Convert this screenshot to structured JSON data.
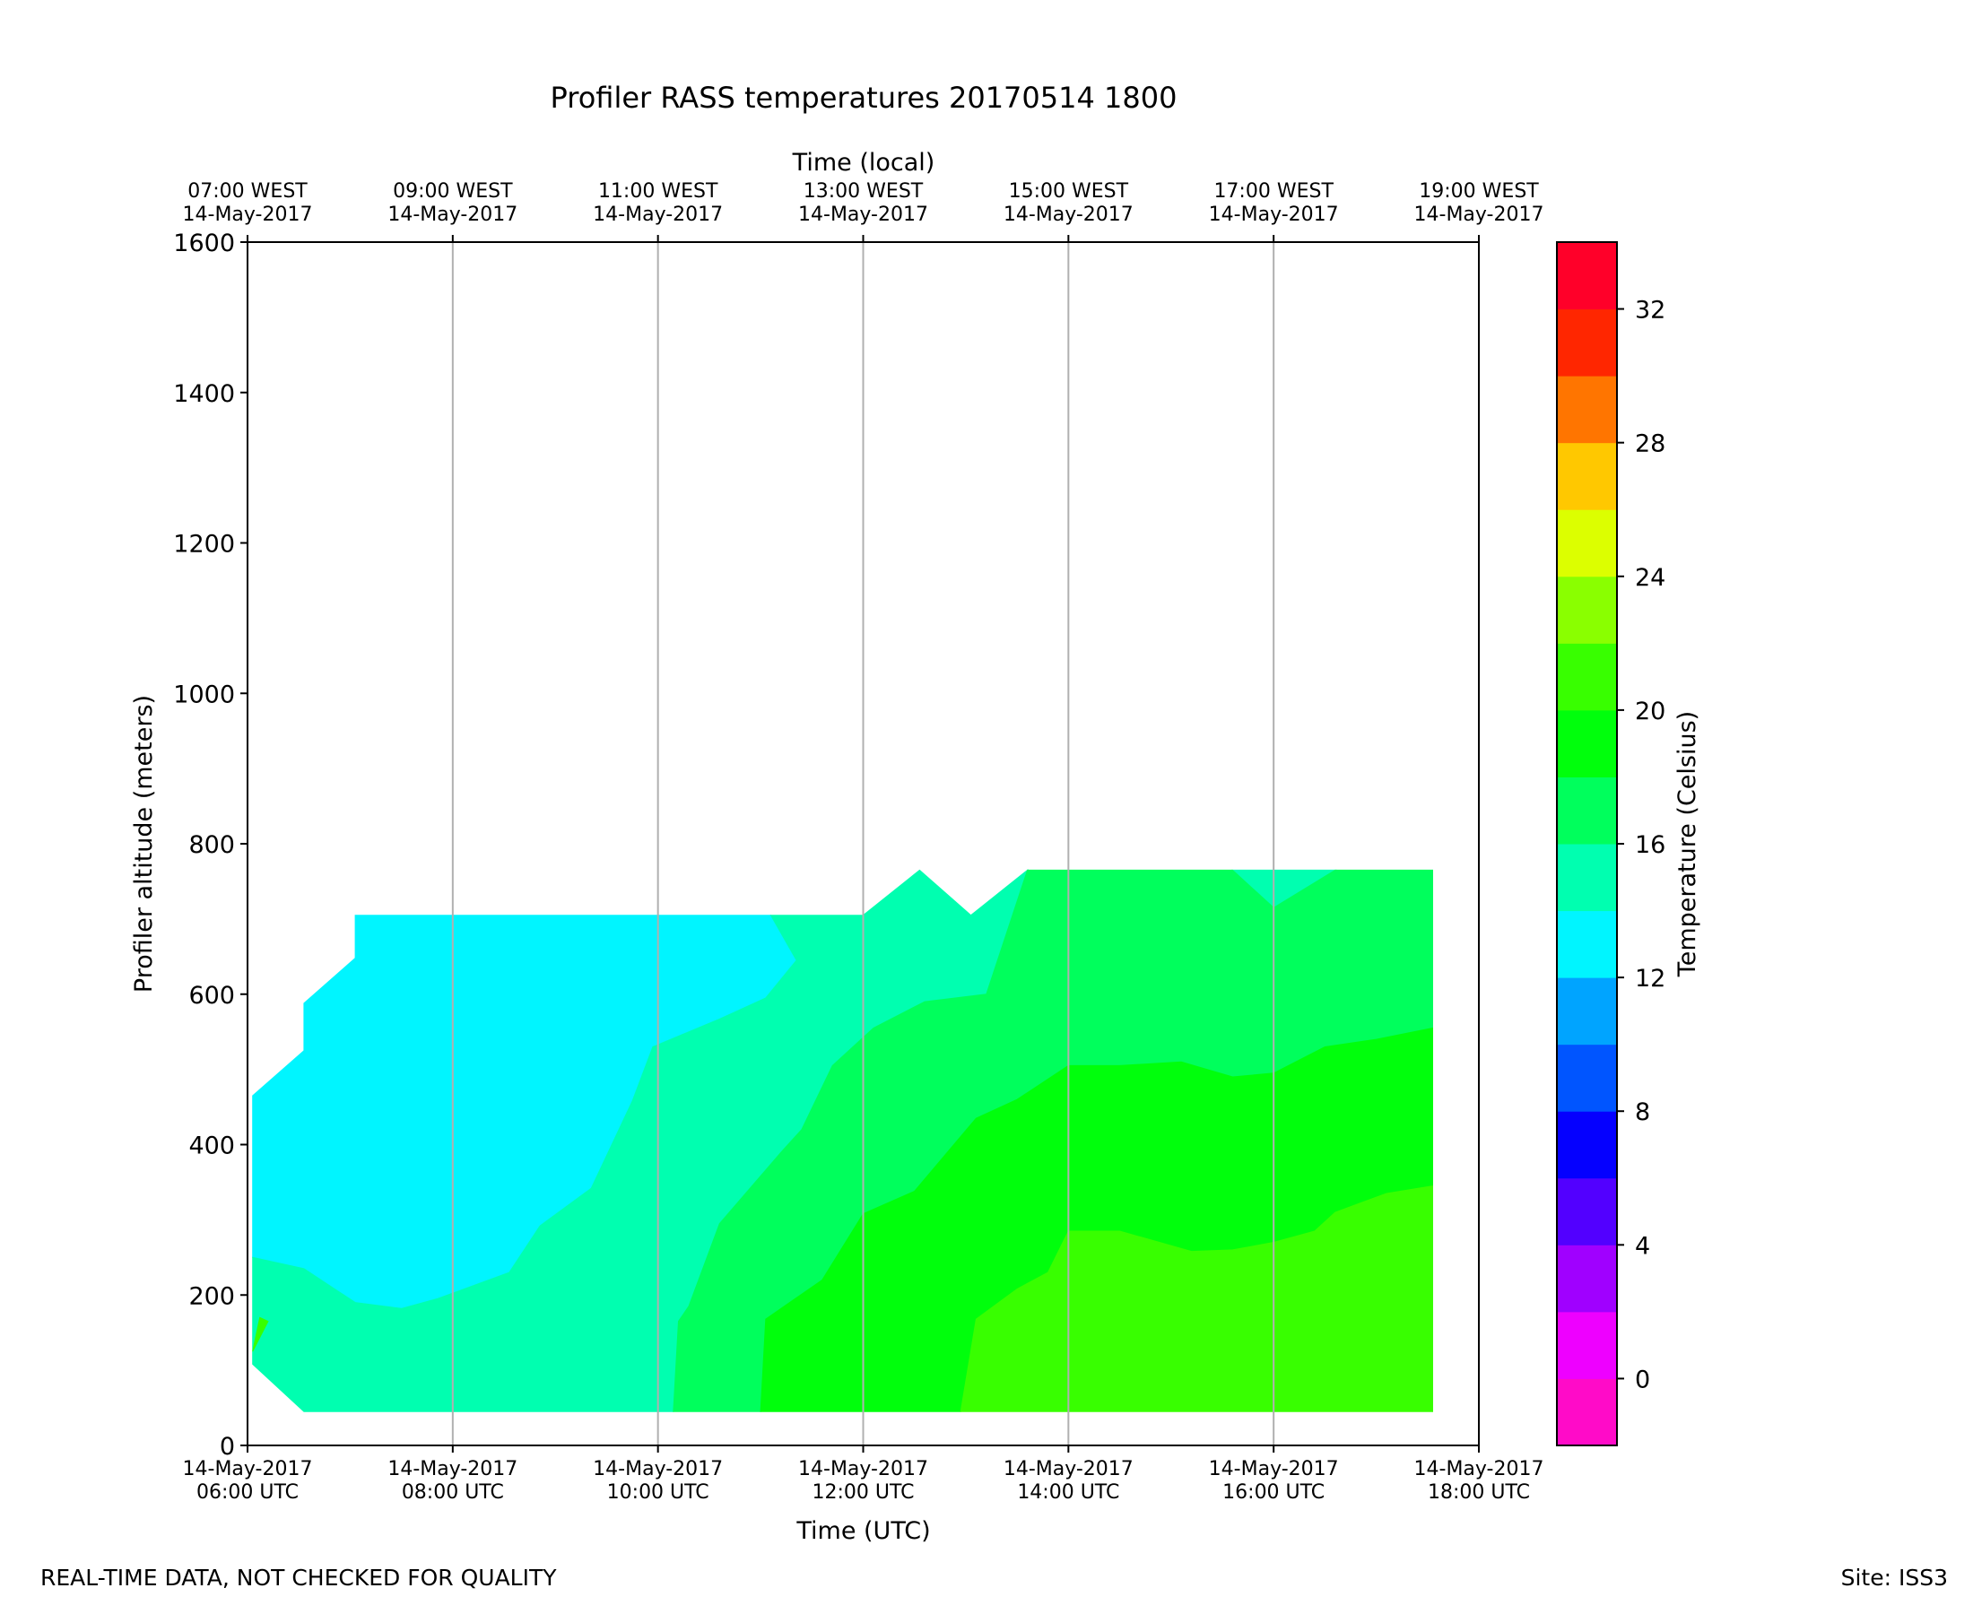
{
  "chart_data": {
    "type": "heatmap",
    "subtype": "filled-contour",
    "title": "Profiler RASS temperatures 20170514 1800",
    "xlabel": "Time (UTC)",
    "x2label": "Time (local)",
    "ylabel": "Profiler altitude (meters)",
    "colorbar_label": "Temperature (Celsius)",
    "xlim_hours_utc": [
      6,
      18
    ],
    "ylim": [
      0,
      1600
    ],
    "yticks": [
      0,
      200,
      400,
      600,
      800,
      1000,
      1200,
      1400,
      1600
    ],
    "xticks": [
      {
        "hour": 6,
        "date": "14-May-2017",
        "time": "06:00 UTC"
      },
      {
        "hour": 8,
        "date": "14-May-2017",
        "time": "08:00 UTC"
      },
      {
        "hour": 10,
        "date": "14-May-2017",
        "time": "10:00 UTC"
      },
      {
        "hour": 12,
        "date": "14-May-2017",
        "time": "12:00 UTC"
      },
      {
        "hour": 14,
        "date": "14-May-2017",
        "time": "14:00 UTC"
      },
      {
        "hour": 16,
        "date": "14-May-2017",
        "time": "16:00 UTC"
      },
      {
        "hour": 18,
        "date": "14-May-2017",
        "time": "18:00 UTC"
      }
    ],
    "x2ticks": [
      {
        "hour": 6,
        "time": "07:00 WEST",
        "date": "14-May-2017"
      },
      {
        "hour": 8,
        "time": "09:00 WEST",
        "date": "14-May-2017"
      },
      {
        "hour": 10,
        "time": "11:00 WEST",
        "date": "14-May-2017"
      },
      {
        "hour": 12,
        "time": "13:00 WEST",
        "date": "14-May-2017"
      },
      {
        "hour": 14,
        "time": "15:00 WEST",
        "date": "14-May-2017"
      },
      {
        "hour": 16,
        "time": "17:00 WEST",
        "date": "14-May-2017"
      },
      {
        "hour": 18,
        "time": "19:00 WEST",
        "date": "14-May-2017"
      }
    ],
    "grid_vertical_hours": [
      8,
      10,
      12,
      14,
      16
    ],
    "colorbar": {
      "min": -2,
      "max": 34,
      "step": 2,
      "ticks": [
        0,
        4,
        8,
        12,
        16,
        20,
        24,
        28,
        32
      ],
      "colors": [
        "#ff0bc8",
        "#ee00ff",
        "#a000ff",
        "#5200ff",
        "#0500ff",
        "#0055ff",
        "#00a4ff",
        "#00f5ff",
        "#00ffb0",
        "#00ff5c",
        "#00ff0c",
        "#38ff00",
        "#8aff00",
        "#dcff00",
        "#ffc800",
        "#ff7500",
        "#ff2600",
        "#ff0029"
      ]
    },
    "contour_regions": [
      {
        "band": "12-14",
        "color": "#00f5ff",
        "points": [
          [
            6.05,
            250
          ],
          [
            6.05,
            465
          ],
          [
            6.55,
            525
          ],
          [
            6.55,
            588
          ],
          [
            7.05,
            648
          ],
          [
            7.05,
            705
          ],
          [
            11.1,
            705
          ],
          [
            11.35,
            645
          ],
          [
            11.05,
            595
          ],
          [
            10.6,
            567
          ],
          [
            9.95,
            530
          ],
          [
            9.75,
            458
          ],
          [
            9.55,
            400
          ],
          [
            9.35,
            342
          ],
          [
            8.85,
            292
          ],
          [
            8.55,
            230
          ],
          [
            7.85,
            195
          ],
          [
            7.5,
            182
          ],
          [
            7.05,
            190
          ],
          [
            6.55,
            235
          ],
          [
            6.05,
            250
          ]
        ]
      },
      {
        "band": "14-16",
        "color": "#00ffb0",
        "points": [
          [
            6.05,
            108
          ],
          [
            6.05,
            250
          ],
          [
            6.55,
            235
          ],
          [
            7.05,
            190
          ],
          [
            7.5,
            182
          ],
          [
            7.85,
            195
          ],
          [
            8.55,
            230
          ],
          [
            8.85,
            292
          ],
          [
            9.35,
            342
          ],
          [
            9.55,
            400
          ],
          [
            9.75,
            458
          ],
          [
            9.95,
            530
          ],
          [
            10.6,
            567
          ],
          [
            11.05,
            595
          ],
          [
            11.35,
            645
          ],
          [
            11.1,
            705
          ],
          [
            12.0,
            705
          ],
          [
            12.55,
            765
          ],
          [
            13.05,
            705
          ],
          [
            13.6,
            765
          ],
          [
            13.2,
            600
          ],
          [
            12.6,
            590
          ],
          [
            12.1,
            555
          ],
          [
            11.7,
            505
          ],
          [
            11.4,
            420
          ],
          [
            11.2,
            390
          ],
          [
            10.6,
            295
          ],
          [
            10.3,
            185
          ],
          [
            10.2,
            165
          ],
          [
            10.15,
            45
          ],
          [
            6.55,
            45
          ],
          [
            6.05,
            108
          ]
        ]
      },
      {
        "band": "14-16",
        "color": "#00ffb0",
        "points": [
          [
            15.6,
            765
          ],
          [
            16.0,
            715
          ],
          [
            16.6,
            765
          ],
          [
            15.6,
            765
          ]
        ]
      },
      {
        "band": "16-18",
        "color": "#00ff5c",
        "points": [
          [
            10.15,
            45
          ],
          [
            10.2,
            165
          ],
          [
            10.3,
            185
          ],
          [
            10.6,
            295
          ],
          [
            11.2,
            390
          ],
          [
            11.4,
            420
          ],
          [
            11.7,
            505
          ],
          [
            12.1,
            555
          ],
          [
            12.6,
            590
          ],
          [
            13.2,
            600
          ],
          [
            13.6,
            765
          ],
          [
            15.6,
            765
          ],
          [
            16.0,
            715
          ],
          [
            16.6,
            765
          ],
          [
            17.55,
            765
          ],
          [
            17.55,
            555
          ],
          [
            17.0,
            540
          ],
          [
            16.5,
            530
          ],
          [
            16.0,
            495
          ],
          [
            15.6,
            490
          ],
          [
            15.1,
            510
          ],
          [
            14.5,
            505
          ],
          [
            14.0,
            505
          ],
          [
            13.5,
            460
          ],
          [
            13.1,
            435
          ],
          [
            12.5,
            338
          ],
          [
            12.0,
            308
          ],
          [
            11.6,
            220
          ],
          [
            11.05,
            168
          ],
          [
            11.0,
            45
          ],
          [
            10.15,
            45
          ]
        ]
      },
      {
        "band": "18-20",
        "color": "#00ff0c",
        "points": [
          [
            11.0,
            45
          ],
          [
            11.05,
            168
          ],
          [
            11.6,
            220
          ],
          [
            12.0,
            308
          ],
          [
            12.5,
            338
          ],
          [
            13.1,
            435
          ],
          [
            13.5,
            460
          ],
          [
            14.0,
            505
          ],
          [
            14.5,
            505
          ],
          [
            15.1,
            510
          ],
          [
            15.6,
            490
          ],
          [
            16.0,
            495
          ],
          [
            16.5,
            530
          ],
          [
            17.0,
            540
          ],
          [
            17.55,
            555
          ],
          [
            17.55,
            345
          ],
          [
            17.1,
            335
          ],
          [
            16.6,
            310
          ],
          [
            16.4,
            285
          ],
          [
            16.0,
            270
          ],
          [
            15.6,
            260
          ],
          [
            15.2,
            258
          ],
          [
            14.5,
            285
          ],
          [
            14.0,
            285
          ],
          [
            13.8,
            230
          ],
          [
            13.5,
            208
          ],
          [
            13.1,
            168
          ],
          [
            12.95,
            45
          ],
          [
            11.0,
            45
          ]
        ]
      },
      {
        "band": "20-22",
        "color": "#38ff00",
        "points": [
          [
            12.95,
            45
          ],
          [
            13.1,
            168
          ],
          [
            13.5,
            208
          ],
          [
            13.8,
            230
          ],
          [
            14.0,
            285
          ],
          [
            14.5,
            285
          ],
          [
            15.2,
            258
          ],
          [
            15.6,
            260
          ],
          [
            16.0,
            270
          ],
          [
            16.4,
            285
          ],
          [
            16.6,
            310
          ],
          [
            17.1,
            335
          ],
          [
            17.55,
            345
          ],
          [
            17.55,
            45
          ],
          [
            12.95,
            45
          ]
        ]
      },
      {
        "band": "20-22",
        "color": "#38ff00",
        "points": [
          [
            6.05,
            125
          ],
          [
            6.12,
            170
          ],
          [
            6.2,
            165
          ],
          [
            6.05,
            125
          ]
        ]
      }
    ]
  },
  "footer": {
    "left": "REAL-TIME DATA, NOT CHECKED FOR QUALITY",
    "right": "Site: ISS3"
  }
}
